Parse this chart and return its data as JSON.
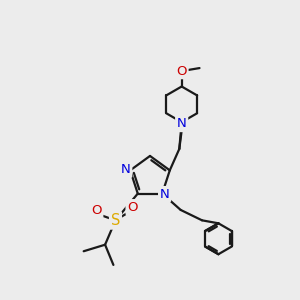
{
  "bg_color": "#ececec",
  "bond_color": "#1a1a1a",
  "N_color": "#0000dd",
  "O_color": "#cc0000",
  "S_color": "#ddaa00",
  "figsize": [
    3.0,
    3.0
  ],
  "dpi": 100,
  "xlim": [
    0,
    10
  ],
  "ylim": [
    0,
    10
  ]
}
